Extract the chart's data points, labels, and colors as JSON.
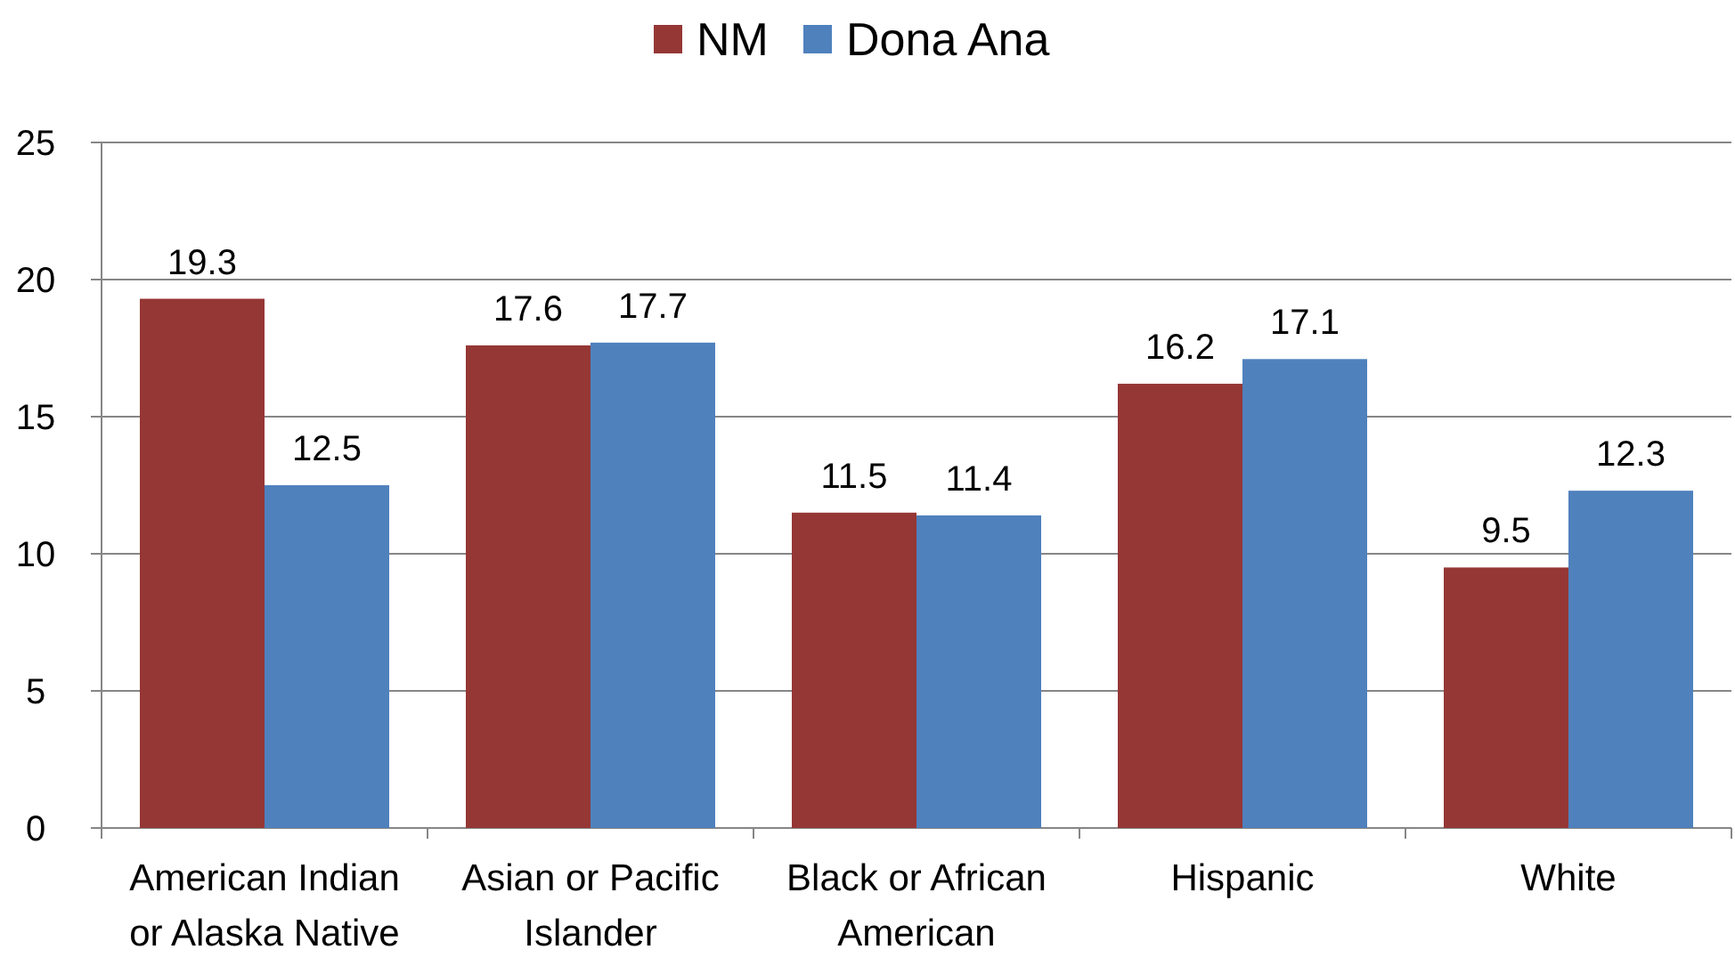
{
  "chart_data": {
    "type": "bar",
    "categories": [
      "American Indian or Alaska Native",
      "Asian or Pacific Islander",
      "Black or African American",
      "Hispanic",
      "White"
    ],
    "series": [
      {
        "name": "NM",
        "color": "#953735",
        "values": [
          19.3,
          17.6,
          11.5,
          16.2,
          9.5
        ]
      },
      {
        "name": "Dona Ana",
        "color": "#4f81bd",
        "values": [
          12.5,
          17.7,
          11.4,
          17.1,
          12.3
        ]
      }
    ],
    "ylim": [
      0,
      25
    ],
    "yticks": [
      0,
      5,
      10,
      15,
      20,
      25
    ],
    "grid": "y",
    "legend": "top",
    "data_labels": true
  }
}
